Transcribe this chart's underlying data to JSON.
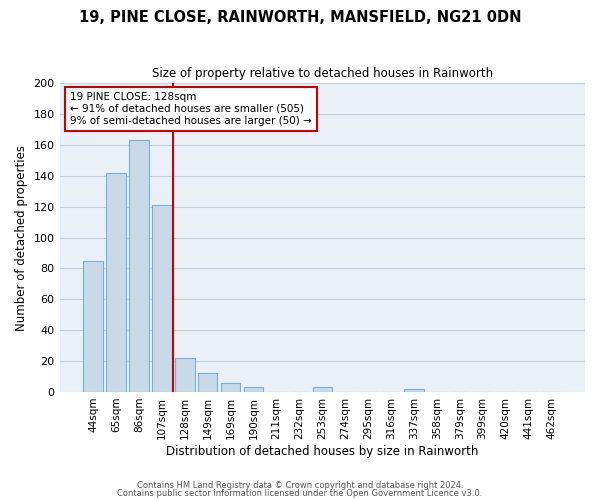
{
  "title": "19, PINE CLOSE, RAINWORTH, MANSFIELD, NG21 0DN",
  "subtitle": "Size of property relative to detached houses in Rainworth",
  "xlabel": "Distribution of detached houses by size in Rainworth",
  "ylabel": "Number of detached properties",
  "bar_color": "#c8daea",
  "bar_edge_color": "#7ab0cc",
  "categories": [
    "44sqm",
    "65sqm",
    "86sqm",
    "107sqm",
    "128sqm",
    "149sqm",
    "169sqm",
    "190sqm",
    "211sqm",
    "232sqm",
    "253sqm",
    "274sqm",
    "295sqm",
    "316sqm",
    "337sqm",
    "358sqm",
    "379sqm",
    "399sqm",
    "420sqm",
    "441sqm",
    "462sqm"
  ],
  "values": [
    85,
    142,
    163,
    121,
    22,
    12,
    6,
    3,
    0,
    0,
    3,
    0,
    0,
    0,
    2,
    0,
    0,
    0,
    0,
    0,
    0
  ],
  "vline_x": 3.5,
  "vline_color": "#cc0000",
  "ylim": [
    0,
    200
  ],
  "yticks": [
    0,
    20,
    40,
    60,
    80,
    100,
    120,
    140,
    160,
    180,
    200
  ],
  "annotation_title": "19 PINE CLOSE: 128sqm",
  "annotation_line1": "← 91% of detached houses are smaller (505)",
  "annotation_line2": "9% of semi-detached houses are larger (50) →",
  "footer1": "Contains HM Land Registry data © Crown copyright and database right 2024.",
  "footer2": "Contains public sector information licensed under the Open Government Licence v3.0.",
  "grid_color": "#c0d0e0",
  "bg_color": "#eaf0f8"
}
